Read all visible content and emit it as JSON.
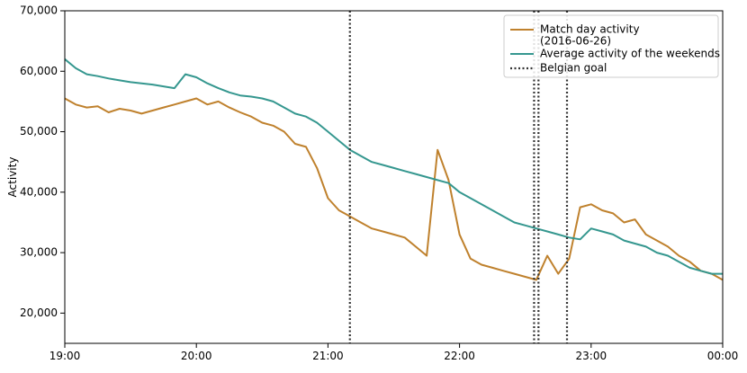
{
  "chart_data": {
    "type": "line",
    "title": "",
    "xlabel": "",
    "ylabel": "Activity",
    "xlim": [
      "19:00",
      "00:00"
    ],
    "ylim": [
      15000,
      70000
    ],
    "grid": false,
    "legend_position": "top-right",
    "x_ticks": [
      "19:00",
      "20:00",
      "21:00",
      "22:00",
      "23:00",
      "00:00"
    ],
    "y_ticks": [
      {
        "value": 20000,
        "label": "20,000"
      },
      {
        "value": 30000,
        "label": "30,000"
      },
      {
        "value": 40000,
        "label": "40,000"
      },
      {
        "value": 50000,
        "label": "50,000"
      },
      {
        "value": 60000,
        "label": "60,000"
      },
      {
        "value": 70000,
        "label": "70,000"
      }
    ],
    "series": [
      {
        "name": "Match day activity\n(2016-06-26)",
        "color": "#bf812d",
        "x": [
          "19:00",
          "19:05",
          "19:10",
          "19:15",
          "19:20",
          "19:25",
          "19:30",
          "19:35",
          "19:40",
          "19:45",
          "19:50",
          "19:55",
          "20:00",
          "20:05",
          "20:10",
          "20:15",
          "20:20",
          "20:25",
          "20:30",
          "20:35",
          "20:40",
          "20:45",
          "20:50",
          "20:55",
          "21:00",
          "21:05",
          "21:10",
          "21:15",
          "21:20",
          "21:25",
          "21:30",
          "21:35",
          "21:40",
          "21:45",
          "21:50",
          "21:55",
          "22:00",
          "22:05",
          "22:10",
          "22:15",
          "22:20",
          "22:25",
          "22:30",
          "22:35",
          "22:40",
          "22:45",
          "22:50",
          "22:55",
          "23:00",
          "23:05",
          "23:10",
          "23:15",
          "23:20",
          "23:25",
          "23:30",
          "23:35",
          "23:40",
          "23:45",
          "23:50",
          "23:55",
          "00:00"
        ],
        "values": [
          55500,
          54500,
          54000,
          54200,
          53200,
          53800,
          53500,
          53000,
          53500,
          54000,
          54500,
          55000,
          55500,
          54500,
          55000,
          54000,
          53200,
          52500,
          51500,
          51000,
          50000,
          48000,
          47500,
          44000,
          39000,
          37000,
          36000,
          35000,
          34000,
          33500,
          33000,
          32500,
          31000,
          29500,
          47000,
          42000,
          33000,
          29000,
          28000,
          27500,
          27000,
          26500,
          26000,
          25500,
          29500,
          26500,
          29000,
          37500,
          38000,
          37000,
          36500,
          35000,
          35500,
          33000,
          32000,
          31000,
          29500,
          28500,
          27000,
          26500,
          25500
        ]
      },
      {
        "name": "Average activity of the weekends",
        "color": "#35978f",
        "x": [
          "19:00",
          "19:05",
          "19:10",
          "19:15",
          "19:20",
          "19:25",
          "19:30",
          "19:35",
          "19:40",
          "19:45",
          "19:50",
          "19:55",
          "20:00",
          "20:05",
          "20:10",
          "20:15",
          "20:20",
          "20:25",
          "20:30",
          "20:35",
          "20:40",
          "20:45",
          "20:50",
          "20:55",
          "21:00",
          "21:05",
          "21:10",
          "21:15",
          "21:20",
          "21:25",
          "21:30",
          "21:35",
          "21:40",
          "21:45",
          "21:50",
          "21:55",
          "22:00",
          "22:05",
          "22:10",
          "22:15",
          "22:20",
          "22:25",
          "22:30",
          "22:35",
          "22:40",
          "22:45",
          "22:50",
          "22:55",
          "23:00",
          "23:05",
          "23:10",
          "23:15",
          "23:20",
          "23:25",
          "23:30",
          "23:35",
          "23:40",
          "23:45",
          "23:50",
          "23:55",
          "00:00"
        ],
        "values": [
          62000,
          60500,
          59500,
          59200,
          58800,
          58500,
          58200,
          58000,
          57800,
          57500,
          57200,
          59500,
          59000,
          58000,
          57200,
          56500,
          56000,
          55800,
          55500,
          55000,
          54000,
          53000,
          52500,
          51500,
          50000,
          48500,
          47000,
          46000,
          45000,
          44500,
          44000,
          43500,
          43000,
          42500,
          42000,
          41500,
          40000,
          39000,
          38000,
          37000,
          36000,
          35000,
          34500,
          34000,
          33500,
          33000,
          32500,
          32200,
          34000,
          33500,
          33000,
          32000,
          31500,
          31000,
          30000,
          29500,
          28500,
          27500,
          27000,
          26500,
          26500
        ]
      }
    ],
    "vlines": {
      "name": "Belgian goal",
      "color": "#333333",
      "style": "dotted",
      "x": [
        "21:10",
        "22:34",
        "22:36",
        "22:49"
      ]
    }
  }
}
